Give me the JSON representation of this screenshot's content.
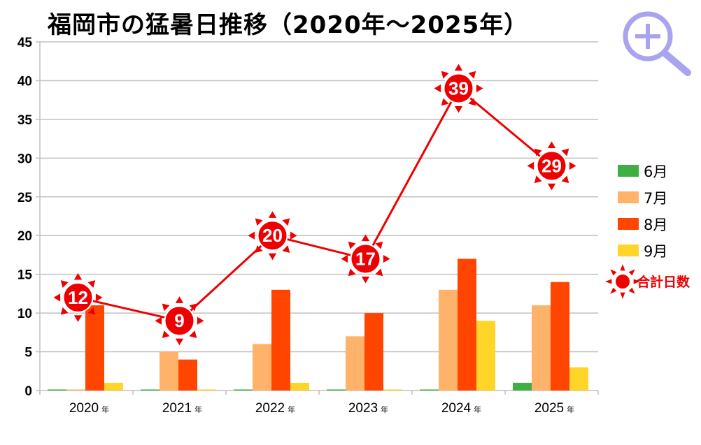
{
  "chart_data": {
    "type": "bar",
    "title": "福岡市の猛暑日推移（2020年〜2025年）",
    "xlabel": "",
    "ylabel": "",
    "ylim": [
      0,
      45
    ],
    "yticks": [
      0,
      5,
      10,
      15,
      20,
      25,
      30,
      35,
      40,
      45
    ],
    "grid": true,
    "legend_position": "right",
    "categories": [
      "2020",
      "2021",
      "2022",
      "2023",
      "2024",
      "2025"
    ],
    "category_suffix": "年",
    "series": [
      {
        "name": "6月",
        "color": "#3fae45",
        "values": [
          0,
          0,
          0,
          0,
          0,
          1
        ]
      },
      {
        "name": "7月",
        "color": "#ffb36a",
        "values": [
          0,
          5,
          6,
          7,
          13,
          11
        ]
      },
      {
        "name": "8月",
        "color": "#ff4500",
        "values": [
          11,
          4,
          13,
          10,
          17,
          14
        ]
      },
      {
        "name": "9月",
        "color": "#ffd52a",
        "values": [
          1,
          0,
          1,
          0,
          9,
          3
        ]
      }
    ],
    "total": {
      "name": "合計日数",
      "type": "line",
      "color": "#ee0000",
      "values": [
        12,
        9,
        20,
        17,
        39,
        29
      ]
    }
  },
  "icons": {
    "zoom": "zoom-in-icon"
  }
}
